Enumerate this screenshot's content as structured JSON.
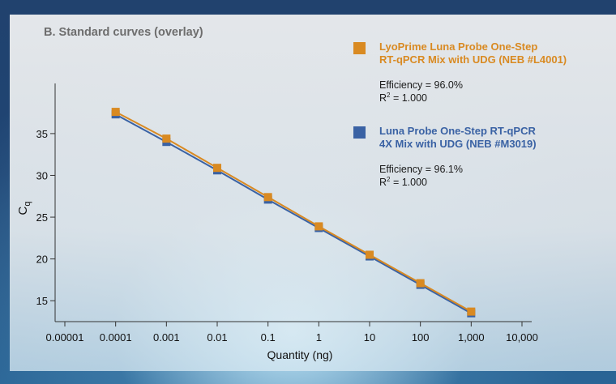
{
  "panel_title": "B. Standard curves (overlay)",
  "colors": {
    "orange": "#d98a22",
    "blue": "#3a62a4",
    "axis": "#333333"
  },
  "chart_data": {
    "type": "scatter",
    "title": "B. Standard curves (overlay)",
    "xlabel": "Quantity (ng)",
    "ylabel": "Cq",
    "xscale": "log",
    "xlim": [
      1e-05,
      10000
    ],
    "ylim": [
      12.5,
      41
    ],
    "x_ticks": [
      1e-05,
      0.0001,
      0.001,
      0.01,
      0.1,
      1,
      10,
      100,
      1000,
      10000
    ],
    "x_tick_labels": [
      "0.00001",
      "0.0001",
      "0.001",
      "0.01",
      "0.1",
      "1",
      "10",
      "100",
      "1,000",
      "10,000"
    ],
    "y_ticks": [
      15,
      20,
      25,
      30,
      35
    ],
    "y_tick_labels": [
      "15",
      "20",
      "25",
      "30",
      "35"
    ],
    "grid": false,
    "legend_position": "top-right",
    "series": [
      {
        "name": "LyoPrime Luna Probe One-Step RT-qPCR Mix with UDG (NEB #L4001)",
        "color": "#d98a22",
        "efficiency": "Efficiency = 96.0%",
        "r2_label": "R",
        "r2_exp": "2",
        "r2_value": " = 1.000",
        "x": [
          0.0001,
          0.001,
          0.01,
          0.1,
          1,
          10,
          100,
          1000
        ],
        "y": [
          37.6,
          34.4,
          30.9,
          27.4,
          23.9,
          20.5,
          17.1,
          13.7
        ]
      },
      {
        "name": "Luna Probe One-Step RT-qPCR 4X Mix with UDG (NEB #M3019)",
        "color": "#3a62a4",
        "efficiency": "Efficiency = 96.1%",
        "r2_label": "R",
        "r2_exp": "2",
        "r2_value": " = 1.000",
        "x": [
          0.0001,
          0.001,
          0.01,
          0.1,
          1,
          10,
          100,
          1000
        ],
        "y": [
          37.3,
          34.0,
          30.6,
          27.1,
          23.7,
          20.3,
          16.9,
          13.5
        ]
      }
    ]
  },
  "legend": [
    {
      "line1": "LyoPrime Luna Probe One-Step",
      "line2": "RT-qPCR Mix with UDG (NEB #L4001)"
    },
    {
      "line1": "Luna Probe One-Step RT-qPCR",
      "line2": "4X Mix with UDG (NEB #M3019)"
    }
  ]
}
